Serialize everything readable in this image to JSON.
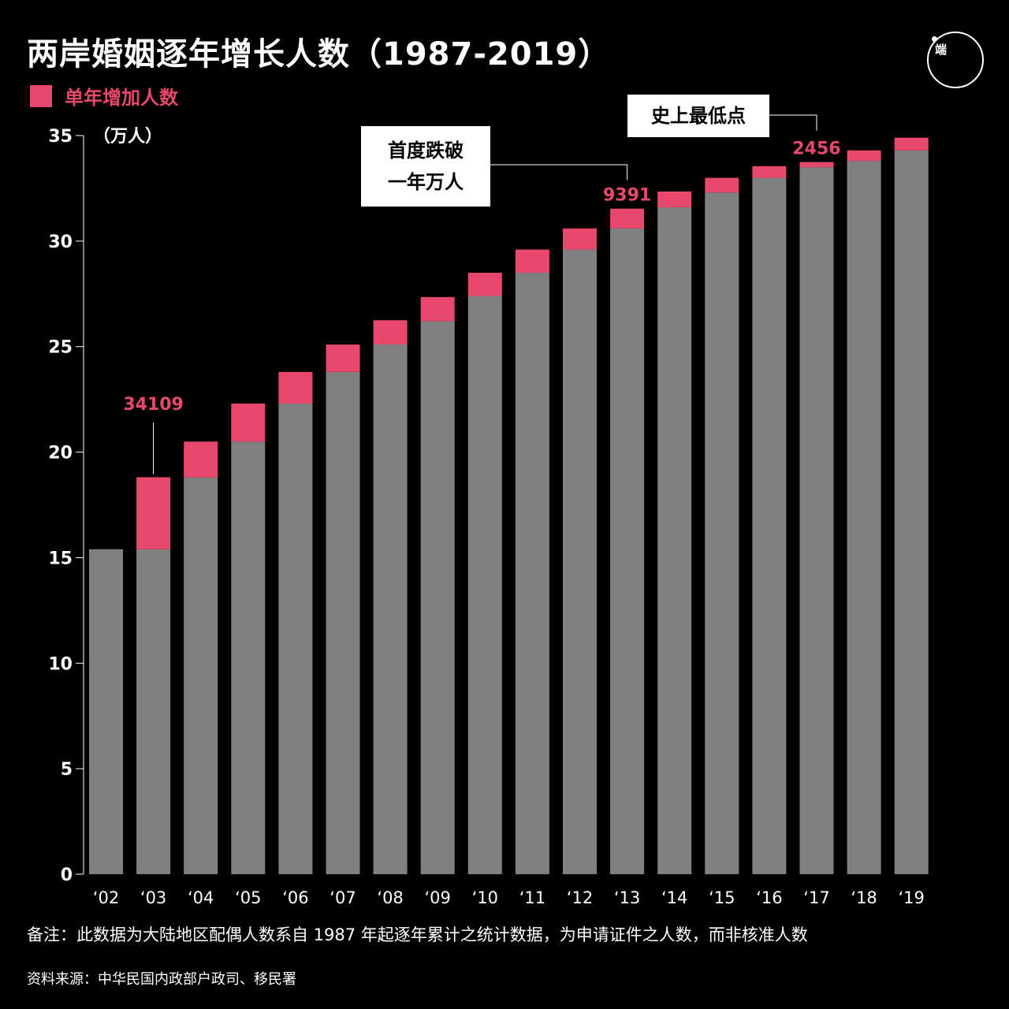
{
  "title": "两岸婚姻逐年增长人数（1987-2019）",
  "legend": {
    "label": "单年增加人数"
  },
  "logo": {
    "text": "端",
    "icon": "initium-logo-icon"
  },
  "colors": {
    "background": "#000000",
    "base_bar": "#808080",
    "increase_bar": "#e8486b",
    "text": "#ffffff",
    "accent": "#e8486b"
  },
  "callouts": {
    "first_below_10k": {
      "line1": "首度跌破",
      "line2": "一年万人"
    },
    "record_low": {
      "line1": "史上最低点"
    }
  },
  "footer": {
    "note": "备注：此数据为大陆地区配偶人数系自 1987 年起逐年累计之统计数据，为申请证件之人数，而非核准人数",
    "source": "资料来源：中华民国内政部户政司、移民署"
  },
  "chart_data": {
    "type": "bar",
    "stacked": true,
    "ylabel": "（万人）",
    "ylim": [
      0,
      35
    ],
    "yticks": [
      0,
      5,
      10,
      15,
      20,
      25,
      30,
      35
    ],
    "grid": false,
    "categories": [
      "‘02",
      "‘03",
      "‘04",
      "‘05",
      "‘06",
      "‘07",
      "‘08",
      "‘09",
      "‘10",
      "‘11",
      "‘12",
      "‘13",
      "‘14",
      "‘15",
      "‘16",
      "‘17",
      "‘18",
      "‘19"
    ],
    "series": [
      {
        "name": "",
        "color": "#808080",
        "values": [
          15.4,
          15.4,
          18.8,
          20.5,
          22.3,
          23.8,
          25.1,
          26.2,
          27.4,
          28.5,
          29.6,
          30.6,
          31.6,
          32.3,
          33.0,
          33.5,
          33.8,
          34.3
        ]
      },
      {
        "name": "单年增加人数",
        "color": "#e8486b",
        "values": [
          0,
          3.4109,
          1.7,
          1.8,
          1.5,
          1.3,
          1.15,
          1.15,
          1.1,
          1.1,
          1.0,
          0.9391,
          0.75,
          0.7,
          0.55,
          0.2456,
          0.5,
          0.6
        ]
      }
    ],
    "data_labels": [
      {
        "category": "‘03",
        "text": "34109"
      },
      {
        "category": "‘13",
        "text": "9391"
      },
      {
        "category": "‘17",
        "text": "2456"
      }
    ]
  }
}
